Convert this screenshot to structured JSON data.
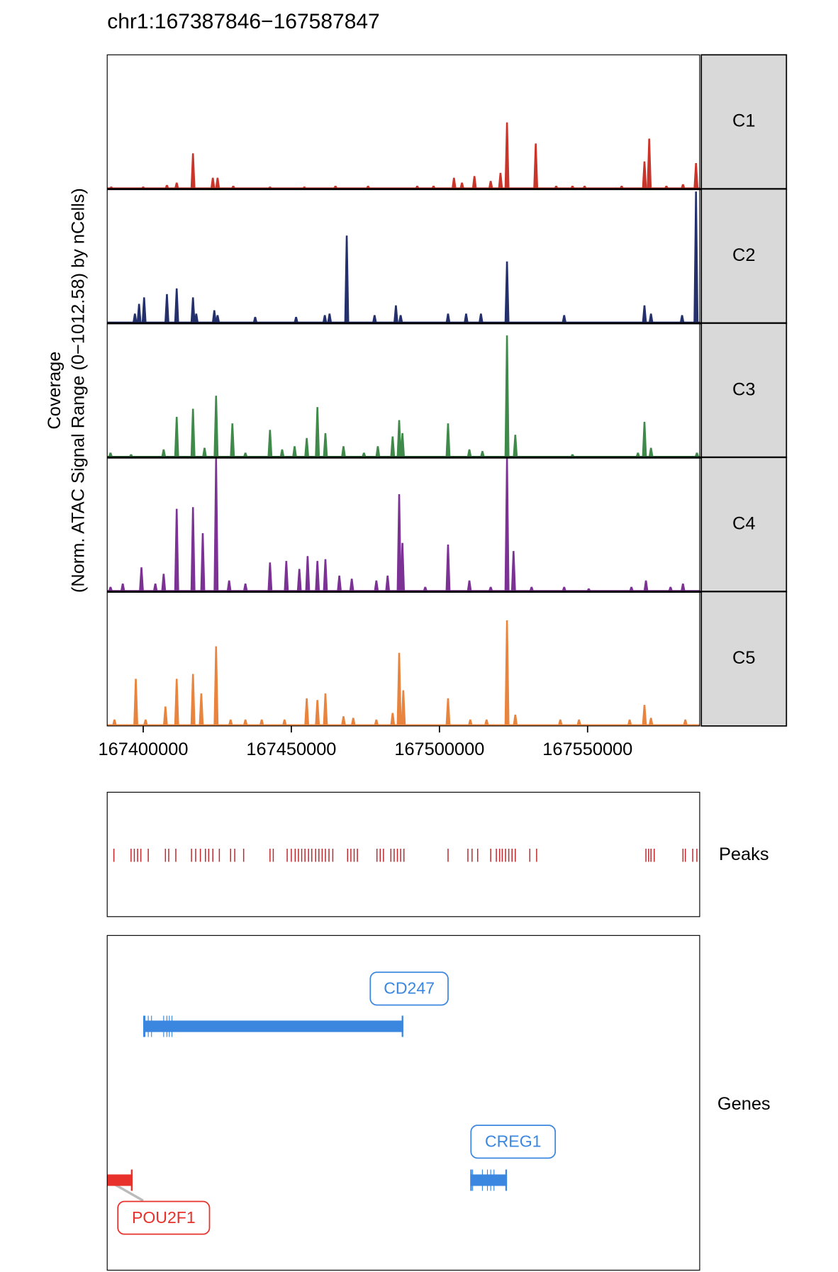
{
  "chart_data": {
    "type": "coverage",
    "title": "chr1:167387846−167587847",
    "y_label": [
      "Coverage",
      "(Norm. ATAC Signal Range (0−1012.58) by nCells)"
    ],
    "xlim": [
      167387846,
      167587847
    ],
    "xticks": [
      167400000,
      167450000,
      167500000,
      167550000
    ],
    "ylim": [
      0,
      1012.58
    ],
    "series": [
      {
        "name": "C1",
        "color": "#c9352b",
        "x": [
          167389200,
          167400000,
          167408000,
          167411300,
          167416800,
          167423500,
          167425100,
          167430400,
          167442800,
          167454400,
          167464900,
          167475900,
          167492500,
          167498000,
          167504900,
          167507600,
          167511800,
          167517300,
          167520600,
          167522800,
          167532500,
          167539400,
          167544900,
          167549000,
          167561500,
          167569200,
          167570800,
          167576600,
          167582200,
          167586600
        ],
        "values": [
          19,
          19,
          31,
          49,
          271,
          86,
          86,
          25,
          19,
          19,
          25,
          25,
          25,
          25,
          86,
          49,
          99,
          62,
          123,
          506,
          346,
          25,
          25,
          25,
          25,
          210,
          383,
          25,
          37,
          197
        ]
      },
      {
        "name": "C2",
        "color": "#23306b",
        "x": [
          167397200,
          167398600,
          167400300,
          167408000,
          167411300,
          167416800,
          167417900,
          167424000,
          167425100,
          167437800,
          167451600,
          167461300,
          167462900,
          167468700,
          167478100,
          167485300,
          167486900,
          167502900,
          167509000,
          167514000,
          167522800,
          167542100,
          167569200,
          167571400,
          167581900,
          167586600
        ],
        "values": [
          74,
          148,
          197,
          222,
          265,
          197,
          74,
          99,
          62,
          49,
          49,
          62,
          74,
          666,
          62,
          136,
          62,
          74,
          74,
          74,
          469,
          62,
          136,
          74,
          62,
          1000
        ]
      },
      {
        "name": "C3",
        "color": "#3f8a4a",
        "x": [
          167388960,
          167395900,
          167406900,
          167411300,
          167416800,
          167420700,
          167424600,
          167430100,
          167434500,
          167442800,
          167446900,
          167451100,
          167455200,
          167458800,
          167461500,
          167467600,
          167474500,
          167479200,
          167484200,
          167486400,
          167487500,
          167502900,
          167510100,
          167514500,
          167522800,
          167525600,
          167544900,
          167567000,
          167569200,
          167571400,
          167586900
        ],
        "values": [
          37,
          25,
          62,
          309,
          370,
          74,
          469,
          259,
          37,
          210,
          62,
          86,
          148,
          383,
          185,
          86,
          37,
          86,
          160,
          284,
          185,
          259,
          62,
          49,
          926,
          173,
          25,
          37,
          271,
          74,
          37
        ]
      },
      {
        "name": "C4",
        "color": "#7b3294",
        "x": [
          167388960,
          167393100,
          167399400,
          167404100,
          167406900,
          167411300,
          167416800,
          167420100,
          167424600,
          167429000,
          167434500,
          167442800,
          167448300,
          167452700,
          167455500,
          167458800,
          167461500,
          167466200,
          167470400,
          167478700,
          167482500,
          167486400,
          167487500,
          167495200,
          167502900,
          167510100,
          167517300,
          167522800,
          167525000,
          167531100,
          167542100,
          167550400,
          167564800,
          167569700,
          167578000,
          167582200
        ],
        "values": [
          37,
          62,
          185,
          62,
          136,
          629,
          642,
          444,
          1012,
          86,
          62,
          222,
          234,
          173,
          271,
          234,
          247,
          123,
          99,
          86,
          123,
          740,
          370,
          37,
          358,
          86,
          37,
          1012,
          309,
          37,
          37,
          25,
          37,
          86,
          37,
          62
        ]
      },
      {
        "name": "C5",
        "color": "#e8843e",
        "x": [
          167390300,
          167397500,
          167400800,
          167407500,
          167411300,
          167416800,
          167419600,
          167424600,
          167429500,
          167434500,
          167440000,
          167447700,
          167455200,
          167458800,
          167461500,
          167467600,
          167470900,
          167478700,
          167484200,
          167486400,
          167487800,
          167502900,
          167510400,
          167515900,
          167522800,
          167525600,
          167540800,
          167547100,
          167564200,
          167569200,
          167571400,
          167583000
        ],
        "values": [
          49,
          358,
          49,
          148,
          358,
          395,
          247,
          605,
          49,
          49,
          49,
          49,
          210,
          197,
          247,
          74,
          62,
          49,
          99,
          555,
          271,
          210,
          49,
          49,
          802,
          86,
          49,
          49,
          49,
          160,
          62,
          49
        ]
      }
    ],
    "peaks": {
      "label": "Peaks",
      "color": "#c0282d",
      "positions": [
        167390100,
        167395900,
        167397000,
        167398100,
        167399200,
        167401700,
        167407500,
        167408600,
        167411000,
        167416300,
        167417700,
        167419300,
        167421000,
        167422100,
        167423500,
        167425700,
        167429500,
        167430900,
        167433900,
        167442800,
        167443900,
        167448600,
        167450000,
        167451300,
        167452400,
        167453500,
        167454600,
        167455800,
        167456900,
        167458200,
        167459300,
        167460400,
        167461500,
        167462700,
        167464000,
        167469000,
        167470100,
        167471200,
        167472300,
        167478900,
        167480000,
        167481100,
        167483600,
        167484700,
        167485800,
        167486900,
        167488000,
        167502900,
        167509600,
        167511000,
        167512900,
        167517300,
        167519200,
        167520300,
        167521200,
        167522300,
        167523400,
        167524500,
        167525600,
        167530500,
        167532800,
        167569700,
        167570600,
        167571400,
        167572500,
        167582200,
        167583000,
        167585500,
        167586900
      ]
    },
    "genes": {
      "label": "Genes",
      "items": [
        {
          "name": "CD247",
          "color": "#3b87e0",
          "start": 167400000,
          "end": 167487800,
          "exons": [
            167400600,
            167401700,
            167402800,
            167406900,
            167408000,
            167408800,
            167409700
          ]
        },
        {
          "name": "CREG1",
          "color": "#3b87e0",
          "start": 167510400,
          "end": 167522800,
          "exons": [
            167511200,
            167514500,
            167516200,
            167517300,
            167518400
          ]
        },
        {
          "name": "POU2F1",
          "color": "#e8312a",
          "start": 167380000,
          "end": 167396400,
          "exons": []
        }
      ]
    }
  }
}
